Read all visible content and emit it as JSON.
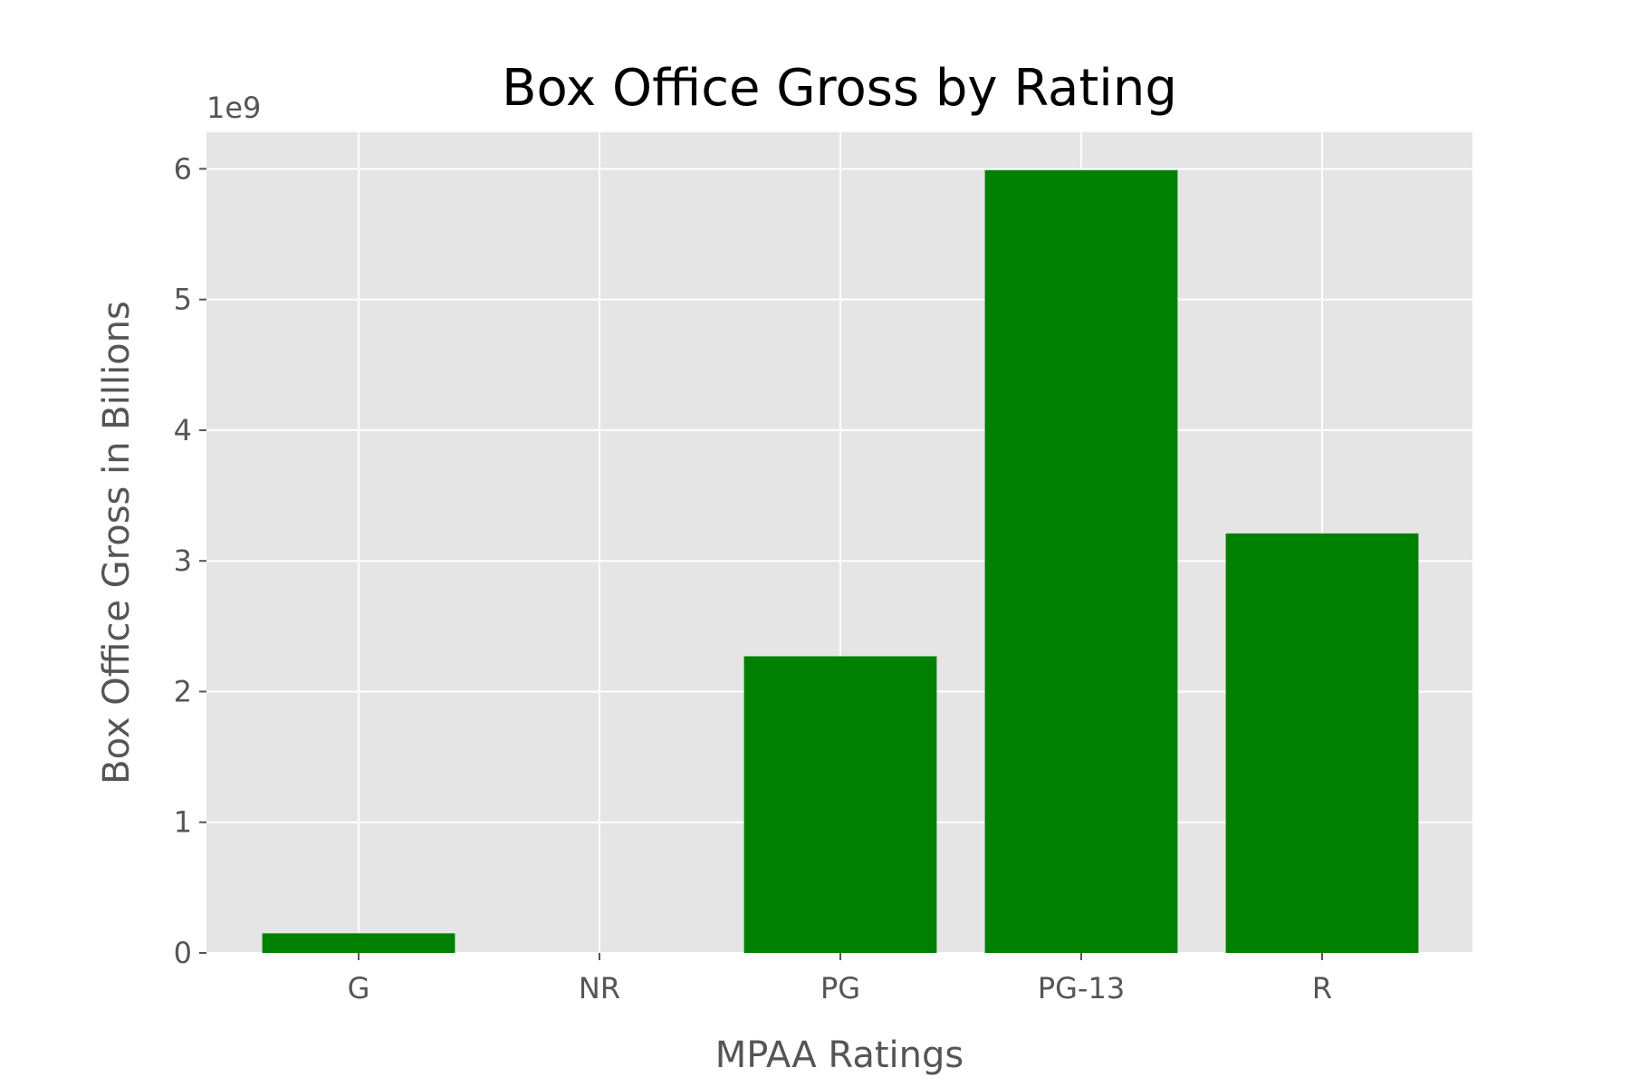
{
  "chart_data": {
    "type": "bar",
    "title": "Box Office Gross by Rating",
    "xlabel": "MPAA Ratings",
    "ylabel": "Box Office Gross in Billions",
    "offset_label": "1e9",
    "categories": [
      "G",
      "NR",
      "PG",
      "PG-13",
      "R"
    ],
    "values": [
      150000000,
      0,
      2270000000,
      5990000000,
      3210000000
    ],
    "ylim": [
      0,
      6280000000
    ],
    "yticks": [
      0,
      1000000000,
      2000000000,
      3000000000,
      4000000000,
      5000000000,
      6000000000
    ],
    "ytick_labels": [
      "0",
      "1",
      "2",
      "3",
      "4",
      "5",
      "6"
    ],
    "grid": true,
    "colors": {
      "bar": "#008000",
      "plot_background": "#e5e5e5",
      "grid": "#ffffff"
    }
  }
}
